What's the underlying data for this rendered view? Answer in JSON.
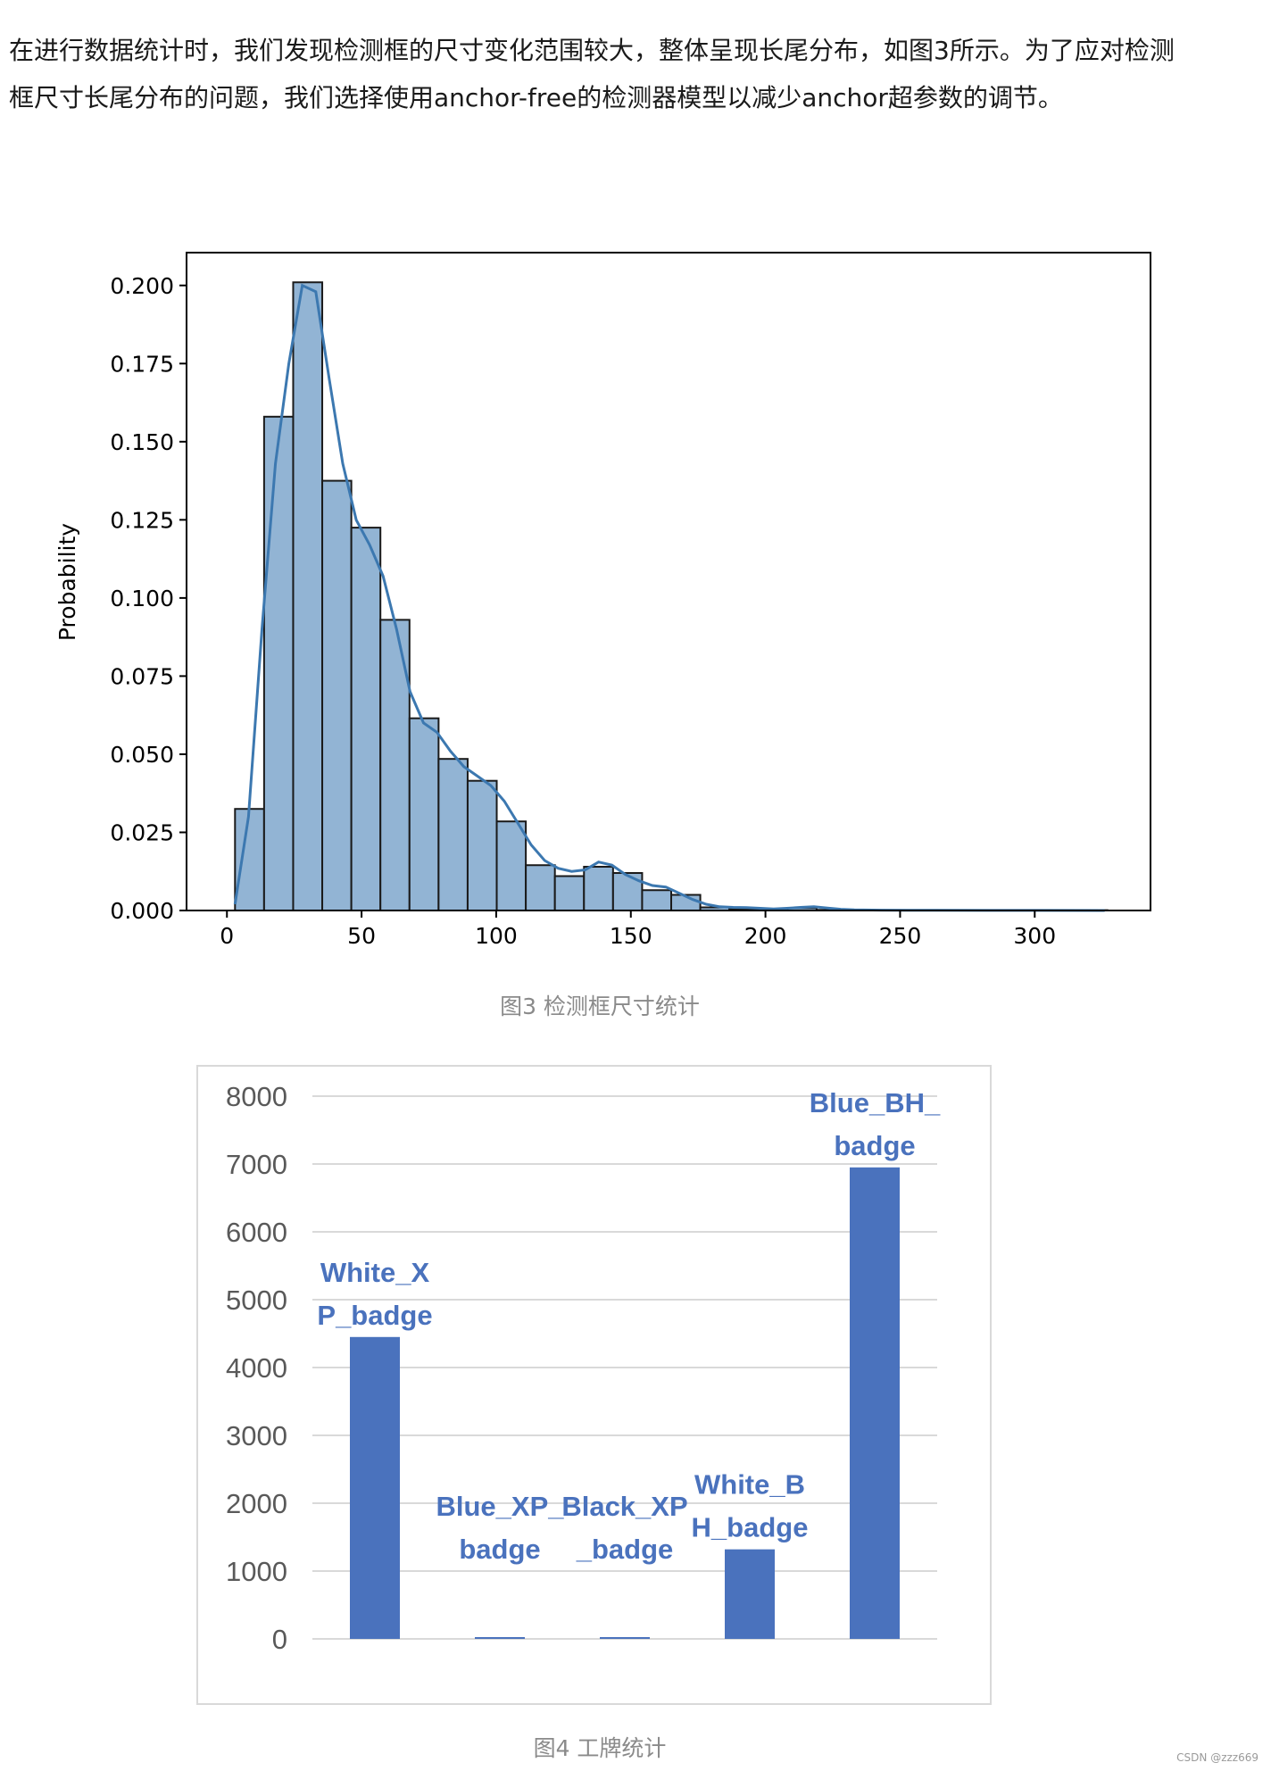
{
  "paragraph": "在进行数据统计时，我们发现检测框的尺寸变化范围较大，整体呈现长尾分布，如图3所示。为了应对检测框尺寸长尾分布的问题，我们选择使用anchor-free的检测器模型以减少anchor超参数的调节。",
  "figure3_caption": "图3 检测框尺寸统计",
  "figure4_caption": "图4 工牌统计",
  "watermark": "CSDN @zzz669",
  "chart_data": [
    {
      "type": "bar",
      "subtype": "histogram-with-kde",
      "ylabel": "Probability",
      "xlabel": "",
      "xlim": [
        -15,
        343
      ],
      "ylim": [
        0,
        0.2105
      ],
      "xticks": [
        0,
        50,
        100,
        150,
        200,
        250,
        300
      ],
      "yticks": [
        "0.000",
        "0.025",
        "0.050",
        "0.075",
        "0.100",
        "0.125",
        "0.150",
        "0.175",
        "0.200"
      ],
      "bin_edges": [
        3,
        13.8,
        24.6,
        35.4,
        46.2,
        57,
        67.8,
        78.6,
        89.4,
        100.2,
        111,
        121.8,
        132.6,
        143.4,
        154.2,
        165,
        175.8,
        186.6,
        197.4,
        208.2,
        219,
        229.8,
        240.6,
        251.4,
        262.2,
        273,
        283.8,
        294.6,
        305.4,
        316.2,
        327
      ],
      "values": [
        0.0325,
        0.158,
        0.201,
        0.1375,
        0.1225,
        0.093,
        0.0615,
        0.0485,
        0.0415,
        0.0285,
        0.0145,
        0.011,
        0.014,
        0.012,
        0.0065,
        0.005,
        0.001,
        0.0005,
        0.0003,
        0.0008,
        0.0002,
        0.0001,
        0.0001,
        0,
        0.0001,
        0,
        0,
        0,
        0,
        0.0001
      ],
      "kde": {
        "x": [
          3,
          8,
          13,
          18,
          23,
          28,
          33,
          38,
          43,
          48,
          53,
          58,
          63,
          68,
          73,
          78,
          83,
          88,
          93,
          98,
          103,
          108,
          113,
          118,
          123,
          128,
          133,
          138,
          143,
          148,
          153,
          158,
          163,
          168,
          173,
          178,
          183,
          188,
          193,
          198,
          203,
          208,
          213,
          218,
          223,
          228,
          233,
          243,
          263,
          283,
          303,
          326
        ],
        "y": [
          0.002,
          0.03,
          0.09,
          0.143,
          0.175,
          0.2,
          0.198,
          0.17,
          0.143,
          0.125,
          0.117,
          0.107,
          0.09,
          0.07,
          0.06,
          0.057,
          0.051,
          0.046,
          0.043,
          0.04,
          0.035,
          0.028,
          0.021,
          0.016,
          0.0135,
          0.0125,
          0.013,
          0.0155,
          0.0145,
          0.0115,
          0.0095,
          0.008,
          0.0075,
          0.0055,
          0.0035,
          0.002,
          0.0012,
          0.001,
          0.0009,
          0.0007,
          0.0005,
          0.0007,
          0.001,
          0.0012,
          0.0008,
          0.0004,
          0.0002,
          0.0001,
          5e-05,
          3e-05,
          2e-05,
          1e-05
        ]
      },
      "grid": false,
      "colors": {
        "bar_fill": "#92b4d4",
        "bar_edge": "#1a1a1a",
        "kde_line": "#3c78b0"
      }
    },
    {
      "type": "bar",
      "categories": [
        "White_XP_badge",
        "Blue_XP_badge",
        "Black_XP_badge",
        "White_BH_badge",
        "Blue_BH_badge"
      ],
      "data_labels": [
        [
          "White_X",
          "P_badge"
        ],
        [
          "Blue_XP_",
          "badge"
        ],
        [
          "Black_XP",
          "_badge"
        ],
        [
          "White_B",
          "H_badge"
        ],
        [
          "Blue_BH_",
          "badge"
        ]
      ],
      "values": [
        4450,
        20,
        20,
        1320,
        6950
      ],
      "ylim": [
        0,
        8000
      ],
      "yticks": [
        0,
        1000,
        2000,
        3000,
        4000,
        5000,
        6000,
        7000,
        8000
      ],
      "grid": true,
      "legend": "none",
      "colors": {
        "bar": "#4a72bd",
        "label": "#4a72bd",
        "grid": "#d9d9d9",
        "tick": "#595959"
      }
    }
  ]
}
